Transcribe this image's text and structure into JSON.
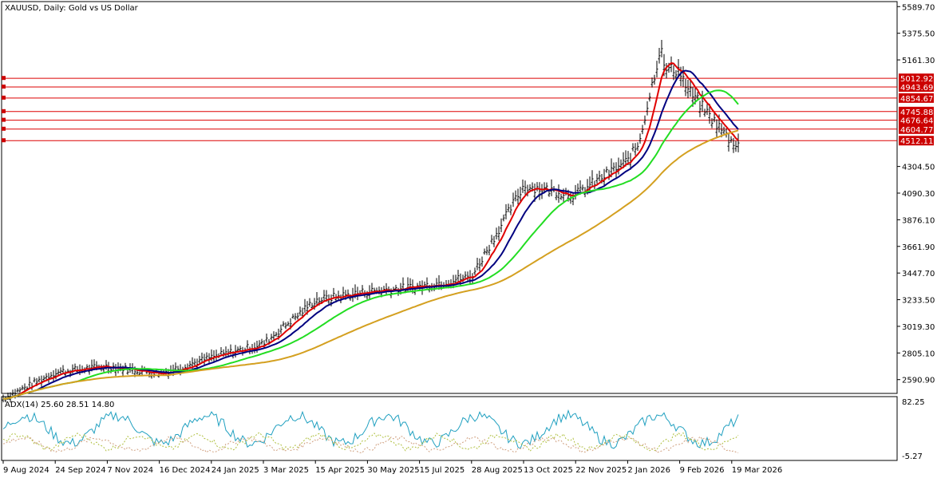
{
  "window": {
    "title": "XAUUSD, Daily:  Gold vs US Dollar"
  },
  "indicator": {
    "label": "ADX(14) 25.60 28.51 14.80",
    "scale_top": "82.25",
    "scale_bottom": "-5.27"
  },
  "colors": {
    "background": "#ffffff",
    "border": "#000000",
    "candles": "#000000",
    "ma_fast": "#e00000",
    "ma_slow": "#000080",
    "ma_medium": "#22dd22",
    "ma_long": "#d4a020",
    "hlines": "#dd0000",
    "adx_main": "#20a0c0",
    "adx_plus": "#b0c040",
    "adx_minus": "#d0a080"
  },
  "chart_data": [
    {
      "type": "line",
      "subtype": "candlestick-with-moving-averages",
      "symbol": "XAUUSD",
      "timeframe": "Daily",
      "ylim": [
        2480,
        5630
      ],
      "y_ticks": [
        "5589.70",
        "5375.50",
        "5161.30",
        "4304.50",
        "4090.30",
        "3876.10",
        "3661.90",
        "3447.70",
        "3233.50",
        "3019.30",
        "2805.10",
        "2590.90"
      ],
      "y_tick_values": [
        5589.7,
        5375.5,
        5161.3,
        4304.5,
        4090.3,
        3876.1,
        3661.9,
        3447.7,
        3233.5,
        3019.3,
        2805.1,
        2590.9
      ],
      "x_ticks": [
        "9 Aug 2024",
        "24 Sep 2024",
        "7 Nov 2024",
        "16 Dec 2024",
        "24 Jan 2025",
        "3 Mar 2025",
        "15 Apr 2025",
        "30 May 2025",
        "15 Jul 2025",
        "28 Aug 2025",
        "13 Oct 2025",
        "22 Nov 2025",
        "2 Jan 2026",
        "9 Feb 2026",
        "19 Mar 2026"
      ],
      "horizontal_levels": [
        "5012.92",
        "4943.69",
        "4854.67",
        "4745.88",
        "4676.64",
        "4604.77",
        "4512.11"
      ],
      "horizontal_level_values": [
        5012.92,
        4943.69,
        4854.67,
        4745.88,
        4676.64,
        4604.77,
        4512.11
      ],
      "price_path": [
        {
          "x": "9 Aug 2024",
          "y": 2440
        },
        {
          "x": "24 Sep 2024",
          "y": 2650
        },
        {
          "x": "7 Nov 2024",
          "y": 2700
        },
        {
          "x": "16 Dec 2024",
          "y": 2640
        },
        {
          "x": "24 Jan 2025",
          "y": 2770
        },
        {
          "x": "3 Mar 2025",
          "y": 2880
        },
        {
          "x": "15 Apr 2025",
          "y": 3230
        },
        {
          "x": "30 May 2025",
          "y": 3300
        },
        {
          "x": "15 Jul 2025",
          "y": 3340
        },
        {
          "x": "28 Aug 2025",
          "y": 3420
        },
        {
          "x": "13 Oct 2025",
          "y": 4150
        },
        {
          "x": "22 Nov 2025",
          "y": 4080
        },
        {
          "x": "2 Jan 2026",
          "y": 4350
        },
        {
          "x": "9 Feb 2026",
          "y": 5000
        },
        {
          "x": "19 Mar 2026",
          "y": 4500
        }
      ],
      "series": [
        {
          "values_ref": "price_path"
        }
      ]
    },
    {
      "type": "line",
      "subtype": "indicator",
      "ylim": [
        -5.27,
        82.25
      ]
    }
  ]
}
